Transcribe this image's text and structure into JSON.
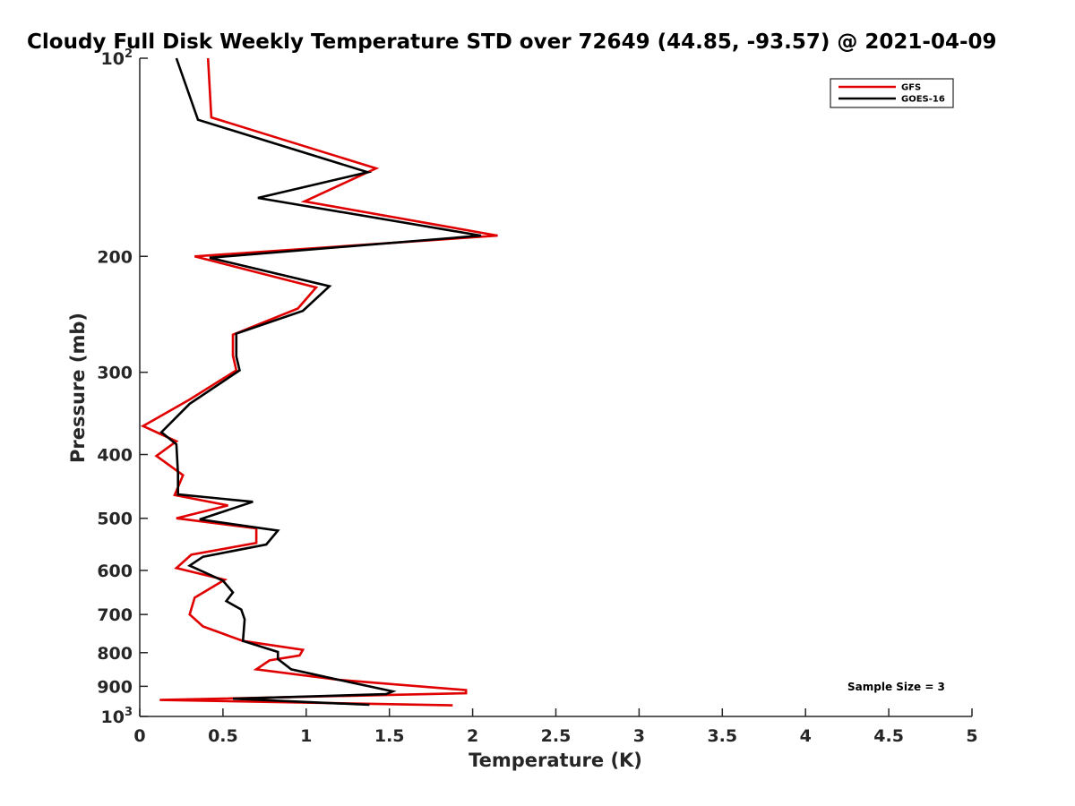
{
  "chart_data": {
    "type": "line",
    "title": "Cloudy Full Disk Weekly Temperature STD over 72649 (44.85, -93.57) @ 2021-04-09",
    "xlabel": "Temperature (K)",
    "ylabel": "Pressure (mb)",
    "xlim": [
      0,
      5
    ],
    "ylim": [
      100,
      1000
    ],
    "y_scale": "log",
    "y_reversed": true,
    "grid": false,
    "legend_position": "top-right",
    "x_ticks": [
      0,
      0.5,
      1,
      1.5,
      2,
      2.5,
      3,
      3.5,
      4,
      4.5,
      5
    ],
    "x_tick_labels": [
      "0",
      "0.5",
      "1",
      "1.5",
      "2",
      "2.5",
      "3",
      "3.5",
      "4",
      "4.5",
      "5"
    ],
    "y_ticks": [
      100,
      200,
      300,
      400,
      500,
      600,
      700,
      800,
      900,
      1000
    ],
    "y_tick_labels": [
      {
        "base": "10",
        "exp": "2"
      },
      {
        "base": "200",
        "exp": ""
      },
      {
        "base": "300",
        "exp": ""
      },
      {
        "base": "400",
        "exp": ""
      },
      {
        "base": "500",
        "exp": ""
      },
      {
        "base": "600",
        "exp": ""
      },
      {
        "base": "700",
        "exp": ""
      },
      {
        "base": "800",
        "exp": ""
      },
      {
        "base": "900",
        "exp": ""
      },
      {
        "base": "10",
        "exp": "3"
      }
    ],
    "series": [
      {
        "name": "GFS",
        "color": "#e00000",
        "points": [
          {
            "x": 0.41,
            "p": 100
          },
          {
            "x": 0.43,
            "p": 123
          },
          {
            "x": 1.42,
            "p": 147
          },
          {
            "x": 0.99,
            "p": 165
          },
          {
            "x": 2.15,
            "p": 186
          },
          {
            "x": 0.33,
            "p": 200
          },
          {
            "x": 1.06,
            "p": 223
          },
          {
            "x": 0.95,
            "p": 240
          },
          {
            "x": 0.56,
            "p": 263
          },
          {
            "x": 0.56,
            "p": 283
          },
          {
            "x": 0.58,
            "p": 298
          },
          {
            "x": 0.3,
            "p": 330
          },
          {
            "x": 0.02,
            "p": 362
          },
          {
            "x": 0.22,
            "p": 382
          },
          {
            "x": 0.1,
            "p": 402
          },
          {
            "x": 0.26,
            "p": 430
          },
          {
            "x": 0.21,
            "p": 461
          },
          {
            "x": 0.53,
            "p": 478
          },
          {
            "x": 0.22,
            "p": 500
          },
          {
            "x": 0.7,
            "p": 518
          },
          {
            "x": 0.7,
            "p": 545
          },
          {
            "x": 0.31,
            "p": 568
          },
          {
            "x": 0.22,
            "p": 595
          },
          {
            "x": 0.51,
            "p": 620
          },
          {
            "x": 0.33,
            "p": 660
          },
          {
            "x": 0.3,
            "p": 700
          },
          {
            "x": 0.38,
            "p": 730
          },
          {
            "x": 0.62,
            "p": 768
          },
          {
            "x": 0.98,
            "p": 792
          },
          {
            "x": 0.96,
            "p": 808
          },
          {
            "x": 0.78,
            "p": 822
          },
          {
            "x": 0.7,
            "p": 848
          },
          {
            "x": 1.2,
            "p": 880
          },
          {
            "x": 1.96,
            "p": 912
          },
          {
            "x": 1.96,
            "p": 922
          },
          {
            "x": 0.12,
            "p": 944
          },
          {
            "x": 1.88,
            "p": 962
          }
        ]
      },
      {
        "name": "GOES-16",
        "color": "#000000",
        "points": [
          {
            "x": 0.22,
            "p": 100
          },
          {
            "x": 0.35,
            "p": 124
          },
          {
            "x": 1.37,
            "p": 149
          },
          {
            "x": 0.71,
            "p": 163
          },
          {
            "x": 2.05,
            "p": 186
          },
          {
            "x": 0.42,
            "p": 201
          },
          {
            "x": 1.14,
            "p": 222
          },
          {
            "x": 0.98,
            "p": 242
          },
          {
            "x": 0.58,
            "p": 262
          },
          {
            "x": 0.58,
            "p": 284
          },
          {
            "x": 0.6,
            "p": 298
          },
          {
            "x": 0.3,
            "p": 335
          },
          {
            "x": 0.13,
            "p": 370
          },
          {
            "x": 0.22,
            "p": 386
          },
          {
            "x": 0.23,
            "p": 428
          },
          {
            "x": 0.23,
            "p": 460
          },
          {
            "x": 0.68,
            "p": 472
          },
          {
            "x": 0.36,
            "p": 502
          },
          {
            "x": 0.83,
            "p": 522
          },
          {
            "x": 0.76,
            "p": 548
          },
          {
            "x": 0.38,
            "p": 572
          },
          {
            "x": 0.3,
            "p": 590
          },
          {
            "x": 0.5,
            "p": 622
          },
          {
            "x": 0.56,
            "p": 648
          },
          {
            "x": 0.52,
            "p": 668
          },
          {
            "x": 0.61,
            "p": 688
          },
          {
            "x": 0.63,
            "p": 712
          },
          {
            "x": 0.62,
            "p": 768
          },
          {
            "x": 0.83,
            "p": 798
          },
          {
            "x": 0.83,
            "p": 818
          },
          {
            "x": 0.91,
            "p": 848
          },
          {
            "x": 1.16,
            "p": 876
          },
          {
            "x": 1.52,
            "p": 916
          },
          {
            "x": 1.48,
            "p": 925
          },
          {
            "x": 0.56,
            "p": 940
          },
          {
            "x": 1.38,
            "p": 960
          }
        ]
      }
    ],
    "annotation": "Sample Size = 3"
  }
}
